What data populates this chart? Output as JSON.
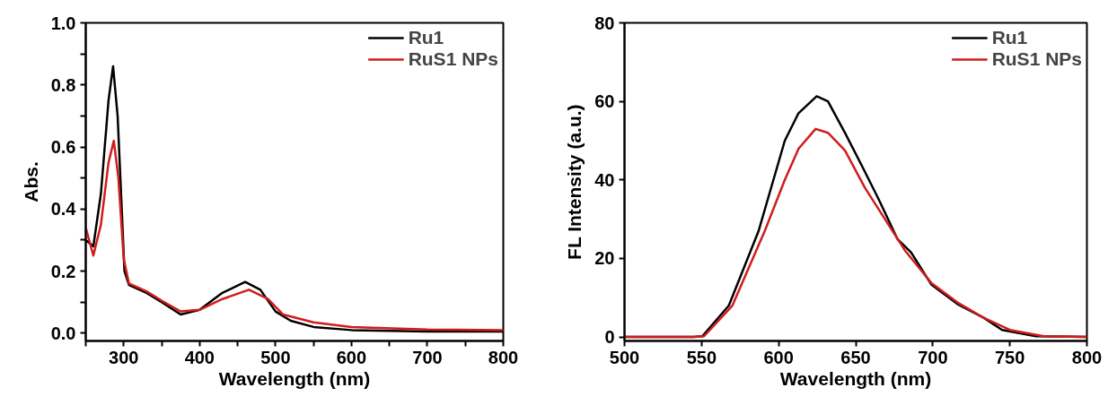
{
  "chart_data": [
    {
      "type": "line",
      "xlabel": "Wavelength (nm)",
      "ylabel": "Abs.",
      "xlim": [
        250,
        800
      ],
      "ylim": [
        -0.025,
        1.0
      ],
      "xticks": [
        {
          "value": 250,
          "label": null
        },
        300,
        {
          "value": 350,
          "label": null
        },
        400,
        {
          "value": 450,
          "label": null
        },
        500,
        {
          "value": 550,
          "label": null
        },
        600,
        {
          "value": 650,
          "label": null
        },
        700,
        {
          "value": 750,
          "label": null
        },
        800
      ],
      "yticks": [
        "0.0",
        {
          "value": 0.1,
          "label": null
        },
        0.2,
        {
          "value": 0.3,
          "label": null
        },
        0.4,
        {
          "value": 0.5,
          "label": null
        },
        0.6,
        {
          "value": 0.7,
          "label": null
        },
        0.8,
        {
          "value": 0.9,
          "label": null
        },
        "1.0"
      ],
      "grid": false,
      "legend": "top right",
      "marker": "none",
      "line_style": "solid",
      "series": [
        {
          "name": "Ru1",
          "color": "#000000",
          "x": [
            250,
            260,
            270,
            280,
            286,
            292,
            301,
            307,
            330,
            350,
            375,
            400,
            430,
            460,
            480,
            500,
            520,
            550,
            600,
            700,
            800
          ],
          "values": [
            0.3,
            0.28,
            0.45,
            0.75,
            0.86,
            0.7,
            0.2,
            0.155,
            0.13,
            0.1,
            0.06,
            0.075,
            0.13,
            0.165,
            0.14,
            0.07,
            0.04,
            0.02,
            0.01,
            0.005,
            0.005
          ]
        },
        {
          "name": "RuS1 NPs",
          "color": "#d01c1c",
          "x": [
            250,
            260,
            270,
            280,
            287,
            293,
            300,
            307,
            330,
            350,
            375,
            400,
            430,
            465,
            490,
            510,
            550,
            600,
            700,
            800
          ],
          "values": [
            0.34,
            0.25,
            0.35,
            0.55,
            0.62,
            0.5,
            0.24,
            0.16,
            0.135,
            0.105,
            0.07,
            0.075,
            0.11,
            0.14,
            0.11,
            0.06,
            0.035,
            0.02,
            0.012,
            0.01
          ]
        }
      ]
    },
    {
      "type": "line",
      "xlabel": "Wavelength (nm)",
      "ylabel": "FL Intensity (a.u.)",
      "xlim": [
        500,
        800
      ],
      "ylim": [
        -1,
        80
      ],
      "xticks": [
        500,
        550,
        600,
        650,
        700,
        750,
        800
      ],
      "yticks": [
        0,
        20,
        40,
        60,
        80
      ],
      "grid": false,
      "legend": "top right",
      "marker": "none",
      "line_style": "solid",
      "series": [
        {
          "name": "Ru1",
          "color": "#000000",
          "x": [
            500,
            545,
            550.5,
            567.7,
            587,
            604,
            612.9,
            624.7,
            632,
            643,
            654,
            665,
            677,
            686,
            699,
            716,
            733,
            745,
            767,
            800
          ],
          "values": [
            0,
            0,
            0.2,
            8,
            27,
            50,
            57,
            61.3,
            60,
            52,
            43.6,
            35,
            25,
            21.5,
            13.4,
            8.4,
            4.9,
            1.8,
            0.2,
            0
          ]
        },
        {
          "name": "RuS1 NPs",
          "color": "#d01c1c",
          "x": [
            500,
            545,
            551.6,
            570,
            591,
            604,
            613,
            624,
            632,
            643,
            656,
            669,
            682,
            699,
            716,
            733,
            750,
            772,
            800
          ],
          "values": [
            0,
            0,
            0.2,
            8,
            27,
            40,
            48,
            53,
            52,
            47.5,
            38,
            30,
            22,
            13.8,
            8.8,
            4.9,
            1.8,
            0.2,
            0
          ]
        }
      ]
    }
  ]
}
